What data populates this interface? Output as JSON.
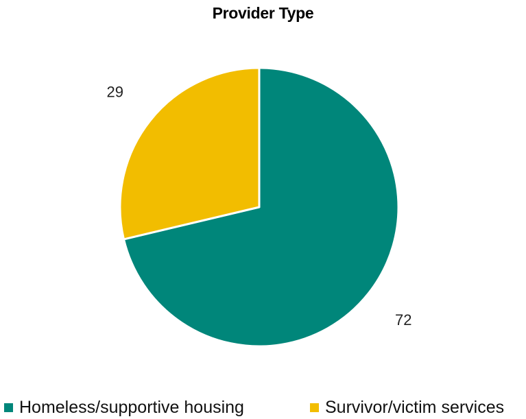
{
  "chart_data": {
    "type": "pie",
    "title": "Provider Type",
    "categories": [
      "Homeless/supportive housing",
      "Survivor/victim services"
    ],
    "values": [
      72,
      29
    ],
    "data_labels": [
      "72",
      "29"
    ],
    "colors": [
      "#00867a",
      "#f2bd00"
    ],
    "legend_position": "bottom"
  }
}
